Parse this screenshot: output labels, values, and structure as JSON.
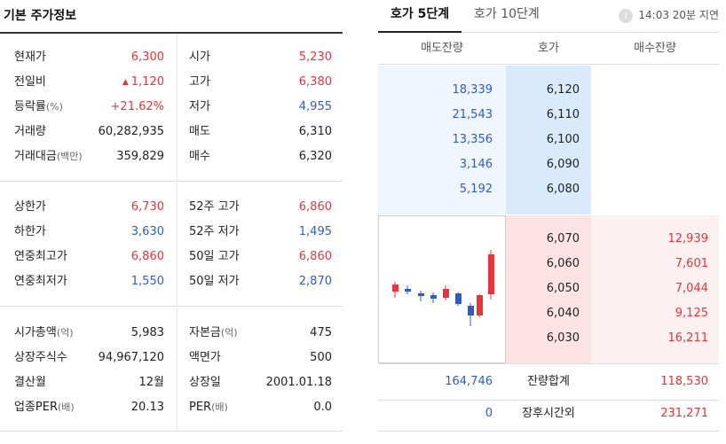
{
  "left": {
    "title": "기본 주가정보",
    "section1": [
      {
        "label": "현재가",
        "value": "6,300",
        "label2": "시가",
        "value2": "5,230"
      },
      {
        "label": "전일비",
        "value": "1,120",
        "label2": "고가",
        "value2": "6,380"
      },
      {
        "label": "등락률",
        "label_unit": "(%)",
        "value": "+21.62%",
        "label2": "저가",
        "value2": "4,955"
      },
      {
        "label": "거래량",
        "value": "60,282,935",
        "label2": "매도",
        "value2": "6,310"
      },
      {
        "label": "거래대금",
        "label_unit": "(백만)",
        "value": "359,829",
        "label2": "매수",
        "value2": "6,320"
      }
    ],
    "section2": [
      {
        "label": "상한가",
        "value": "6,730",
        "label2": "52주 고가",
        "value2": "6,860"
      },
      {
        "label": "하한가",
        "value": "3,630",
        "label2": "52주 저가",
        "value2": "1,495"
      },
      {
        "label": "연중최고가",
        "value": "6,860",
        "label2": "50일 고가",
        "value2": "6,860"
      },
      {
        "label": "연중최저가",
        "value": "1,550",
        "label2": "50일 저가",
        "value2": "2,870"
      }
    ],
    "section3": [
      {
        "label": "시가총액",
        "label_unit": "(억)",
        "value": "5,983",
        "label2": "자본금",
        "label2_unit": "(억)",
        "value2": "475"
      },
      {
        "label": "상장주식수",
        "value": "94,967,120",
        "label2": "액면가",
        "value2": "500"
      },
      {
        "label": "결산월",
        "value": "12월",
        "label2": "상장일",
        "value2": "2001.01.18"
      },
      {
        "label": "업종PER",
        "label_unit": "(배)",
        "value": "20.13",
        "label2": "PER",
        "label2_unit": "(배)",
        "value2": "0.0"
      }
    ],
    "up_arrow": "▲"
  },
  "right": {
    "tab5": "호가 5단계",
    "tab10": "호가 10단계",
    "info_icon": "i",
    "delay": "14:03 20분 지연",
    "header": {
      "ask": "매도잔량",
      "price": "호가",
      "bid": "매수잔량"
    },
    "asks": [
      {
        "qty": "18,339",
        "price": "6,120"
      },
      {
        "qty": "21,543",
        "price": "6,110"
      },
      {
        "qty": "13,356",
        "price": "6,100"
      },
      {
        "qty": "3,146",
        "price": "6,090"
      },
      {
        "qty": "5,192",
        "price": "6,080"
      }
    ],
    "bids": [
      {
        "price": "6,070",
        "qty": "12,939"
      },
      {
        "price": "6,060",
        "qty": "7,601"
      },
      {
        "price": "6,050",
        "qty": "7,044"
      },
      {
        "price": "6,040",
        "qty": "9,125"
      },
      {
        "price": "6,030",
        "qty": "16,211"
      }
    ],
    "totals": {
      "ask": "164,746",
      "label": "잔량합계",
      "bid": "118,530"
    },
    "after_hours": {
      "ask": "0",
      "label": "장후시간외",
      "bid": "231,271"
    }
  },
  "colors": {
    "up": "#e8343a",
    "down": "#2f5bc9",
    "ask_bg": "#f0f6fe",
    "bid_bg": "#fdf0f0"
  }
}
